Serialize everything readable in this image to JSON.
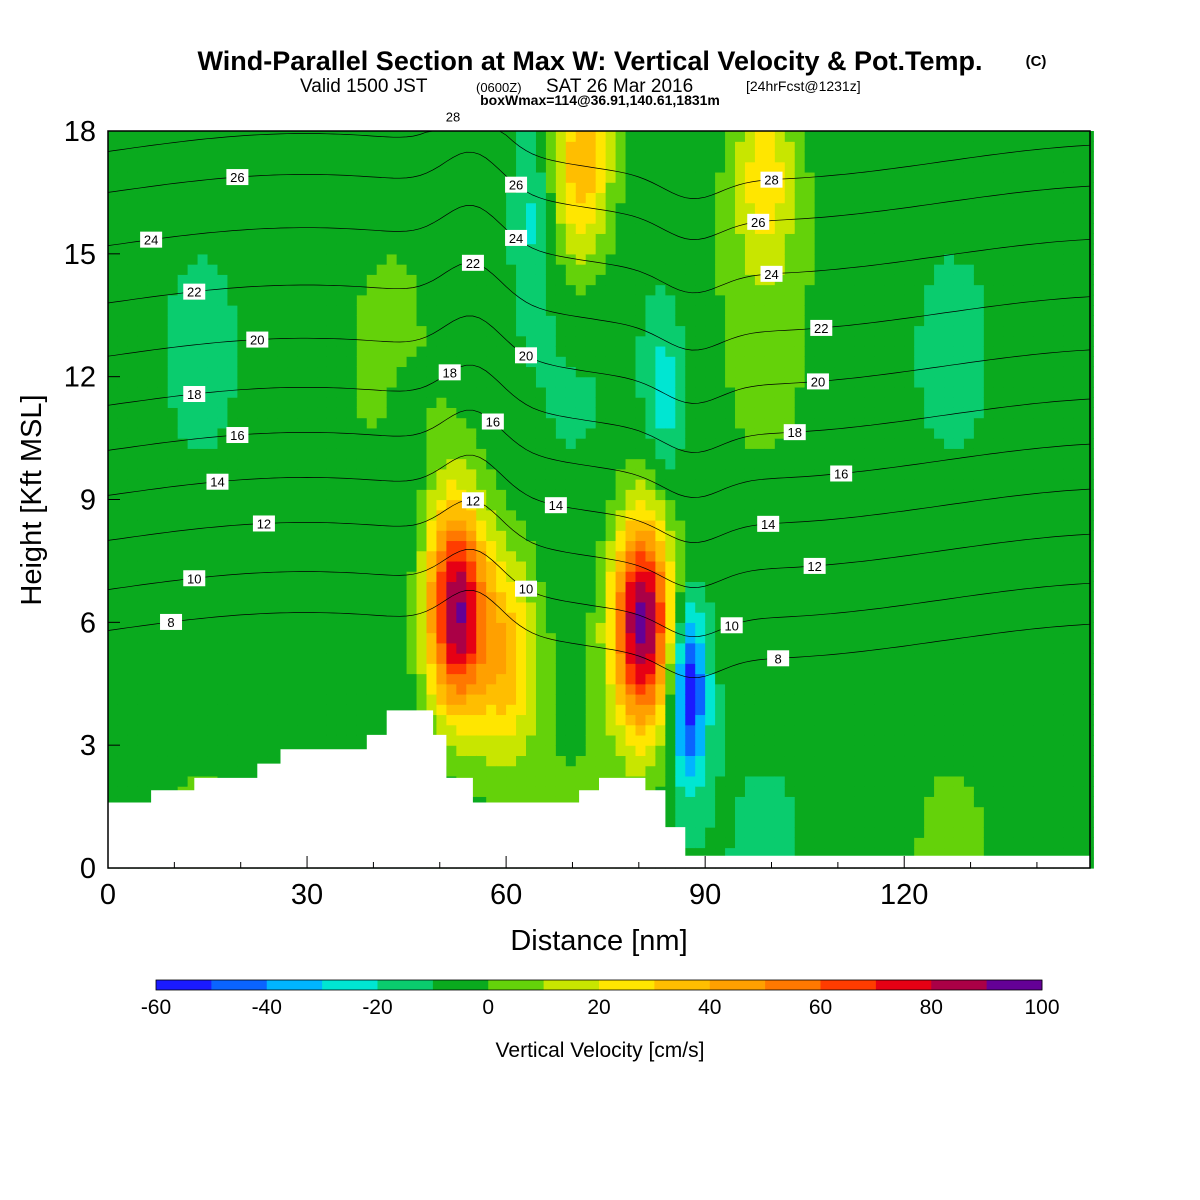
{
  "title": {
    "main": "Wind-Parallel Section at Max W: Vertical Velocity & Pot.Temp.",
    "copyright": "(C)",
    "valid_prefix": "Valid 1500 JST",
    "valid_utc": "(0600Z)",
    "valid_date": "SAT 26 Mar 2016",
    "forecast": "[24hrFcst@1231z]",
    "box_info": "boxWmax=114@36.91,140.61,1831m"
  },
  "chart_data": {
    "type": "heatmap",
    "xlabel": "Distance [nm]",
    "ylabel": "Height [Kft MSL]",
    "xlim": [
      0,
      148
    ],
    "ylim": [
      0,
      18
    ],
    "xticks": [
      0,
      30,
      60,
      90,
      120
    ],
    "xticks_minor": [
      10,
      20,
      40,
      50,
      70,
      80,
      100,
      110,
      130,
      140
    ],
    "yticks": [
      0,
      3,
      6,
      9,
      12,
      15,
      18
    ],
    "colorbar": {
      "label": "Vertical Velocity [cm/s]",
      "levels": [
        -60,
        -50,
        -40,
        -30,
        -20,
        -10,
        0,
        10,
        20,
        30,
        40,
        50,
        60,
        70,
        80,
        90,
        100
      ],
      "tick_labels": [
        "-60",
        "-40",
        "-20",
        "0",
        "20",
        "40",
        "60",
        "80",
        "100"
      ],
      "colors": [
        "#1a1aff",
        "#0a64ff",
        "#00b4ff",
        "#00e6d2",
        "#0acc6e",
        "#0aaa1e",
        "#64d20a",
        "#c8e600",
        "#ffe600",
        "#ffbe00",
        "#ffa000",
        "#ff7800",
        "#ff3c00",
        "#e60014",
        "#aa0046",
        "#640096"
      ]
    },
    "background_value": -5,
    "updraft_cores": [
      {
        "x": 52.5,
        "y": 6.3,
        "peak": 95
      },
      {
        "x": 80.5,
        "y": 6.0,
        "peak": 100
      },
      {
        "x": 71.5,
        "y": 17.2,
        "peak": 45
      },
      {
        "x": 60,
        "y": 5.2,
        "peak": 40
      },
      {
        "x": 99,
        "y": 17.0,
        "peak": 30
      }
    ],
    "downdraft_cores": [
      {
        "x": 87.5,
        "y": 4.3,
        "peak": -60
      },
      {
        "x": 84,
        "y": 11.5,
        "peak": -25
      },
      {
        "x": 64,
        "y": 16.0,
        "peak": -20
      },
      {
        "x": 45,
        "y": 8.8,
        "peak": -15
      }
    ],
    "terrain": [
      [
        0,
        1.6
      ],
      [
        6.5,
        1.6
      ],
      [
        6.5,
        1.9
      ],
      [
        13,
        1.9
      ],
      [
        13,
        2.2
      ],
      [
        22.5,
        2.2
      ],
      [
        22.5,
        2.55
      ],
      [
        26,
        2.55
      ],
      [
        26,
        2.9
      ],
      [
        39,
        2.9
      ],
      [
        39,
        3.25
      ],
      [
        42,
        3.25
      ],
      [
        42,
        3.85
      ],
      [
        49,
        3.85
      ],
      [
        49,
        3.25
      ],
      [
        51,
        3.25
      ],
      [
        51,
        2.2
      ],
      [
        55,
        2.2
      ],
      [
        55,
        1.6
      ],
      [
        71,
        1.6
      ],
      [
        71,
        1.9
      ],
      [
        74,
        1.9
      ],
      [
        74,
        2.2
      ],
      [
        81,
        2.2
      ],
      [
        81,
        1.9
      ],
      [
        84,
        1.9
      ],
      [
        84,
        1.0
      ],
      [
        87,
        1.0
      ],
      [
        87,
        0.3
      ],
      [
        148,
        0.3
      ]
    ],
    "theta_contours": [
      {
        "value": 8,
        "base_y": 5.8,
        "label": "8",
        "label_x": 9.5,
        "label2": "8",
        "label2_x": 101
      },
      {
        "value": 10,
        "base_y": 6.8,
        "label": "10",
        "label_x": 13,
        "label2": "10",
        "label2_x": 63,
        "label3": "10",
        "label3_x": 94
      },
      {
        "value": 12,
        "base_y": 8.0,
        "label": "12",
        "label_x": 23.5,
        "label2": "12",
        "label2_x": 55,
        "label3": "12",
        "label3_x": 106.5
      },
      {
        "value": 14,
        "base_y": 9.1,
        "label": "14",
        "label_x": 16.5,
        "label2": "14",
        "label2_x": 67.5,
        "label3": "14",
        "label3_x": 99.5
      },
      {
        "value": 16,
        "base_y": 10.2,
        "label": "16",
        "label_x": 19.5,
        "label2": "16",
        "label2_x": 58,
        "label3": "16",
        "label3_x": 110.5
      },
      {
        "value": 18,
        "base_y": 11.3,
        "label": "18",
        "label_x": 13,
        "label2": "18",
        "label2_x": 51.5,
        "label3": "18",
        "label3_x": 103.5
      },
      {
        "value": 20,
        "base_y": 12.5,
        "label": "20",
        "label_x": 22.5,
        "label2": "20",
        "label2_x": 63,
        "label3": "20",
        "label3_x": 107
      },
      {
        "value": 22,
        "base_y": 13.8,
        "label": "22",
        "label_x": 13,
        "label2": "22",
        "label2_x": 55,
        "label3": "22",
        "label3_x": 107.5
      },
      {
        "value": 24,
        "base_y": 15.2,
        "label": "24",
        "label_x": 6.5,
        "label2": "24",
        "label2_x": 61.5,
        "label3": "24",
        "label3_x": 100
      },
      {
        "value": 26,
        "base_y": 16.5,
        "label": "26",
        "label_x": 19.5,
        "label2": "26",
        "label2_x": 61.5,
        "label3": "26",
        "label3_x": 98
      },
      {
        "value": 28,
        "base_y": 17.5,
        "label": "28",
        "label_x": 52,
        "label2": "28",
        "label2_x": 100
      }
    ]
  }
}
